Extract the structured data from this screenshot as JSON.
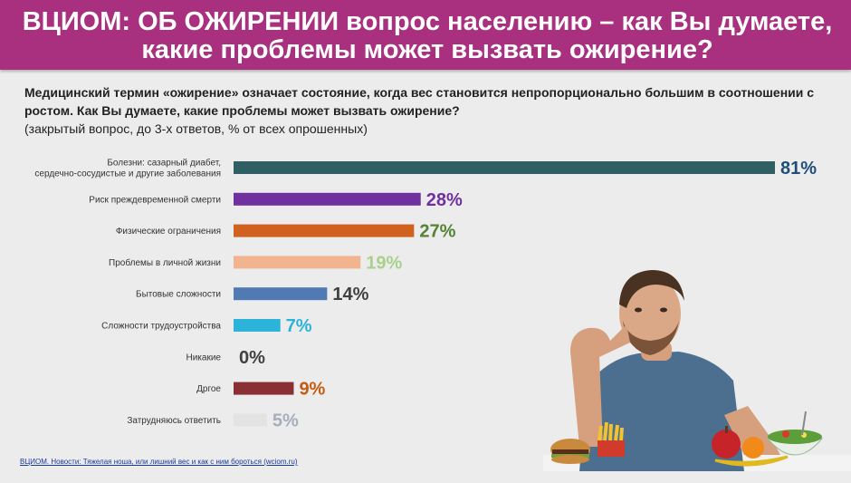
{
  "header": {
    "title": "ВЦИОМ: ОБ ОЖИРЕНИИ вопрос населению – как Вы думаете, какие проблемы может вызвать ожирение?"
  },
  "question": {
    "text": "Медицинский термин «ожирение» означает состояние, когда вес становится непропорционально большим в соотношении с ростом. Как Вы думаете, какие проблемы может вызвать ожирение?",
    "note": "(закрытый вопрос, до 3-х ответов, % от всех опрошенных)"
  },
  "chart_data": {
    "type": "bar",
    "orientation": "horizontal",
    "categories": [
      [
        "Болезни: сазарный диабет,",
        "сердечно-сосудистые и другие заболевания"
      ],
      [
        "Риск преждевременной смерти"
      ],
      [
        "Физические ограничения"
      ],
      [
        "Проблемы в личной жизни"
      ],
      [
        "Бытовые сложности"
      ],
      [
        "Сложности трудоустройства"
      ],
      [
        "Никакие"
      ],
      [
        "Дргое"
      ],
      [
        "Затрудняюсь ответить"
      ]
    ],
    "values": [
      81,
      28,
      27,
      19,
      14,
      7,
      0,
      9,
      5
    ],
    "value_labels": [
      "81%",
      "28%",
      "27%",
      "19%",
      "14%",
      "7%",
      "0%",
      "9%",
      "5%"
    ],
    "bar_colors": [
      "#2f5f63",
      "#7030a0",
      "#d0611f",
      "#f2b38f",
      "#4f7ab4",
      "#2bb3da",
      "#cccccc",
      "#8a2f33",
      "#e3e3e3"
    ],
    "label_colors": [
      "#1f4e79",
      "#7030a0",
      "#548235",
      "#a9d18e",
      "#404040",
      "#2bb3da",
      "#404040",
      "#c55a11",
      "#a6aebc"
    ],
    "xlim": [
      0,
      81
    ],
    "grid": false,
    "legend": "none"
  },
  "photo": {
    "icon": "man-with-food-illustration"
  },
  "source": {
    "text": "ВЦИОМ. Новости: Тяжелая ноша, или лишний вес и как с ним бороться (wciom.ru)"
  }
}
